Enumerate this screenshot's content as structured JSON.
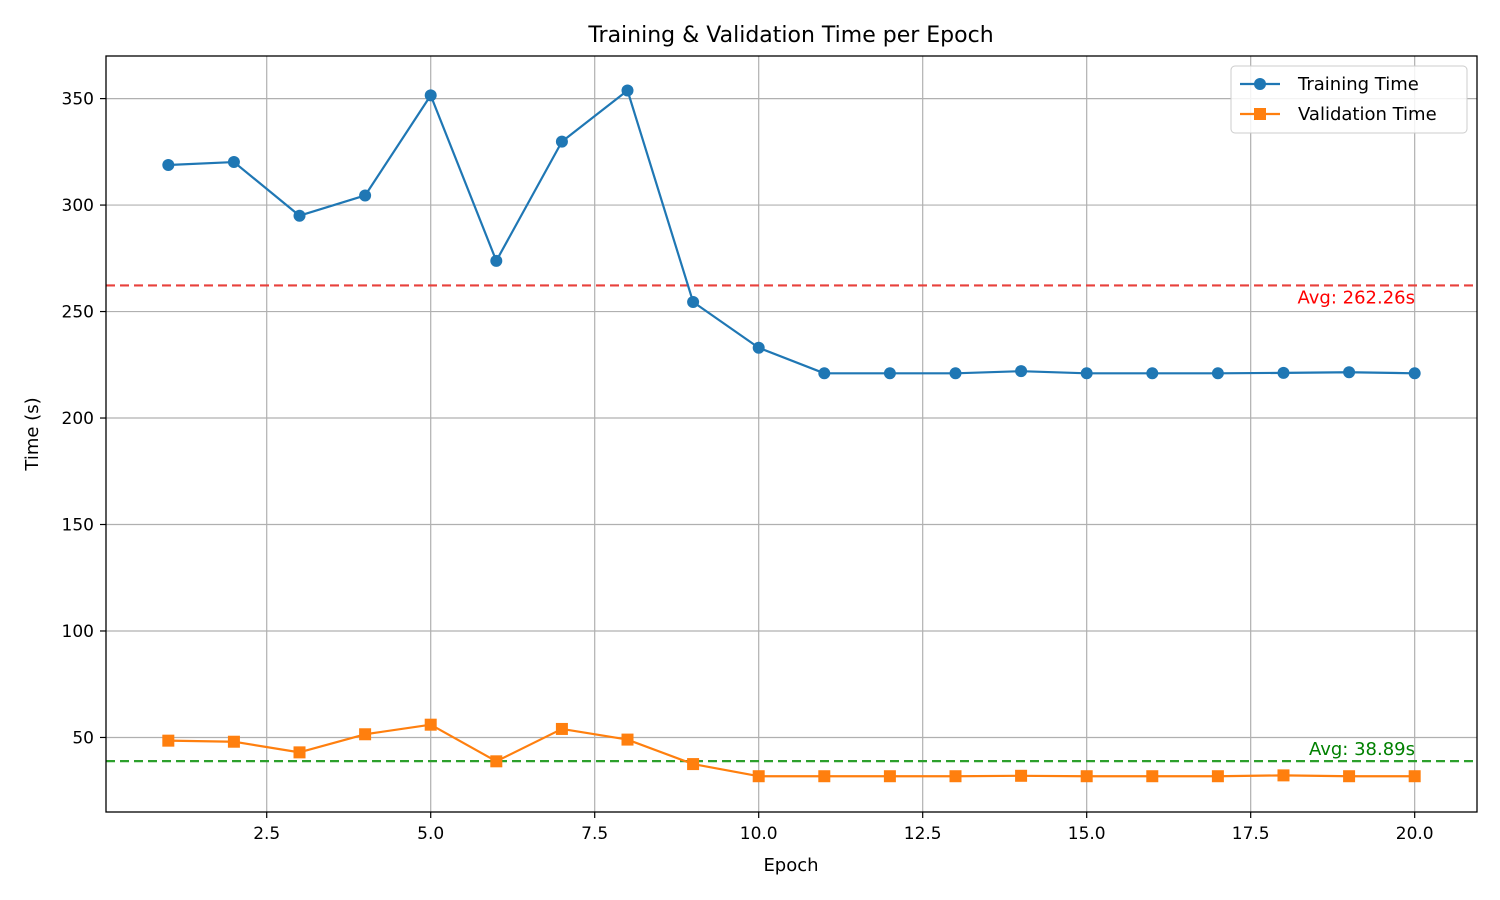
{
  "chart_data": {
    "type": "line",
    "title": "Training & Validation Time per Epoch",
    "xlabel": "Epoch",
    "ylabel": "Time (s)",
    "xlim": [
      0.05,
      20.95
    ],
    "ylim": [
      15,
      370
    ],
    "xticks": [
      2.5,
      5.0,
      7.5,
      10.0,
      12.5,
      15.0,
      17.5,
      20.0
    ],
    "xtick_labels": [
      "2.5",
      "5.0",
      "7.5",
      "10.0",
      "12.5",
      "15.0",
      "17.5",
      "20.0"
    ],
    "yticks": [
      50,
      100,
      150,
      200,
      250,
      300,
      350
    ],
    "ytick_labels": [
      "50",
      "100",
      "150",
      "200",
      "250",
      "300",
      "350"
    ],
    "grid": true,
    "legend_position": "top-right",
    "x": [
      1,
      2,
      3,
      4,
      5,
      6,
      7,
      8,
      9,
      10,
      11,
      12,
      13,
      14,
      15,
      16,
      17,
      18,
      19,
      20
    ],
    "series": [
      {
        "name": "Training Time",
        "color": "#1f77b4",
        "marker": "circle",
        "values": [
          318.8,
          320.2,
          295.0,
          304.5,
          351.5,
          273.8,
          329.8,
          353.8,
          254.5,
          233.0,
          221.0,
          221.0,
          221.0,
          222.0,
          221.0,
          221.0,
          221.0,
          221.2,
          221.5,
          221.0
        ]
      },
      {
        "name": "Validation Time",
        "color": "#ff7f0e",
        "marker": "square",
        "values": [
          48.5,
          48.0,
          43.0,
          51.5,
          56.0,
          38.8,
          54.0,
          49.0,
          37.5,
          31.8,
          31.8,
          31.8,
          31.8,
          32.0,
          31.8,
          31.8,
          31.8,
          32.2,
          31.8,
          31.8
        ]
      }
    ],
    "reference_lines": [
      {
        "value": 262.26,
        "color": "#e8413c",
        "label": "Avg: 262.26s",
        "label_color": "#ff0000"
      },
      {
        "value": 38.89,
        "color": "#2ca02c",
        "label": "Avg: 38.89s",
        "label_color": "#008000"
      }
    ]
  }
}
